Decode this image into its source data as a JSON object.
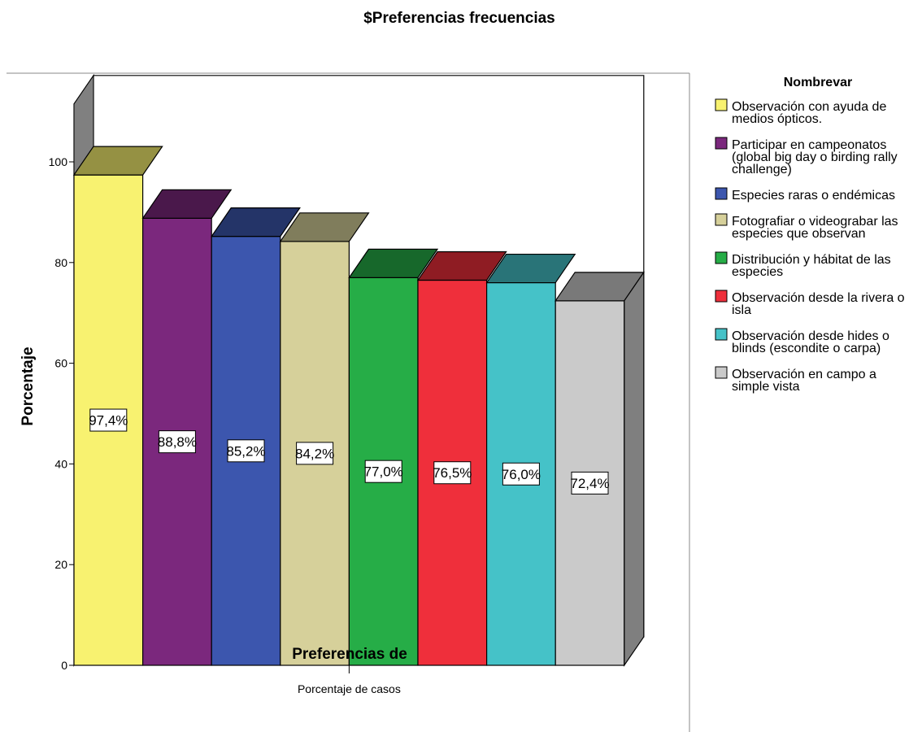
{
  "chart_data": {
    "type": "bar",
    "title": "$Preferencias frecuencias",
    "xlabel": "Preferencias de",
    "ylabel": "Porcentaje",
    "categories": [
      "Porcentaje de casos"
    ],
    "ylim": [
      0,
      100
    ],
    "yticks": [
      "0",
      "20",
      "40",
      "60",
      "80",
      "100"
    ],
    "legend_title": "Nombrevar",
    "legend_position": "right",
    "series": [
      {
        "name": "Observación con ayuda de medios ópticos.",
        "value": 97.4,
        "label": "97,4%",
        "color": "#f8f270",
        "legend_lines": [
          "Observación con ayuda de",
          "medios ópticos."
        ]
      },
      {
        "name": "Participar en campeonatos (global big day o birding rally challenge)",
        "value": 88.8,
        "label": "88,8%",
        "color": "#7b287d",
        "legend_lines": [
          "Participar en campeonatos",
          "(global big day o birding rally",
          "challenge)"
        ]
      },
      {
        "name": "Especies raras o endémicas",
        "value": 85.2,
        "label": "85,2%",
        "color": "#3c56ae",
        "legend_lines": [
          "Especies raras o endémicas"
        ]
      },
      {
        "name": "Fotografiar o videograbar las especies que observan",
        "value": 84.2,
        "label": "84,2%",
        "color": "#d6d09a",
        "legend_lines": [
          "Fotografiar o videograbar las",
          "especies que observan"
        ]
      },
      {
        "name": "Distribución y hábitat de las especies",
        "value": 77.0,
        "label": "77,0%",
        "color": "#26ad47",
        "legend_lines": [
          "Distribución y hábitat de las",
          "especies"
        ]
      },
      {
        "name": "Observación desde la rivera o isla",
        "value": 76.5,
        "label": "76,5%",
        "color": "#ef2f3b",
        "legend_lines": [
          "Observación desde la rivera o",
          "isla"
        ]
      },
      {
        "name": "Observación desde hides o blinds (escondite o carpa)",
        "value": 76.0,
        "label": "76,0%",
        "color": "#45c2c8",
        "legend_lines": [
          "Observación desde hides o",
          "blinds (escondite o carpa)"
        ]
      },
      {
        "name": "Observación en campo a simple vista",
        "value": 72.4,
        "label": "72,4%",
        "color": "#cacaca",
        "legend_lines": [
          "Observación en campo a",
          "simple vista"
        ]
      }
    ],
    "grid": false
  }
}
